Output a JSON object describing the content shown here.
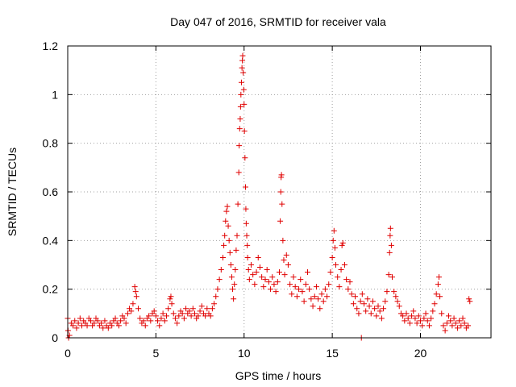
{
  "chart_data": {
    "type": "scatter",
    "title": "Day 047 of 2016, SRMTID for receiver vala",
    "xlabel": "GPS time / hours",
    "ylabel": "SRMTID / TECUs",
    "xlim": [
      0,
      24
    ],
    "ylim": [
      0,
      1.2
    ],
    "xticks": [
      0,
      5,
      10,
      15,
      20
    ],
    "xtick_labels": [
      "0",
      "5",
      "10",
      "15",
      "20"
    ],
    "yticks": [
      0,
      0.2,
      0.4,
      0.6,
      0.8,
      1.0,
      1.2
    ],
    "ytick_labels": [
      "0",
      "0.2",
      "0.4",
      "0.6",
      "0.8",
      "1",
      "1.2"
    ],
    "grid": true,
    "marker": "+",
    "marker_color": "#e00000",
    "series": [
      {
        "name": "SRMTID",
        "points": [
          [
            0.0,
            0.08
          ],
          [
            0.02,
            0.03
          ],
          [
            0.05,
            0.0
          ],
          [
            0.1,
            0.01
          ],
          [
            0.2,
            0.06
          ],
          [
            0.3,
            0.05
          ],
          [
            0.4,
            0.07
          ],
          [
            0.5,
            0.04
          ],
          [
            0.6,
            0.06
          ],
          [
            0.7,
            0.08
          ],
          [
            0.8,
            0.05
          ],
          [
            0.9,
            0.07
          ],
          [
            1.0,
            0.06
          ],
          [
            1.1,
            0.05
          ],
          [
            1.2,
            0.08
          ],
          [
            1.3,
            0.07
          ],
          [
            1.4,
            0.05
          ],
          [
            1.5,
            0.06
          ],
          [
            1.6,
            0.08
          ],
          [
            1.7,
            0.07
          ],
          [
            1.8,
            0.05
          ],
          [
            1.9,
            0.06
          ],
          [
            2.0,
            0.04
          ],
          [
            2.1,
            0.07
          ],
          [
            2.2,
            0.05
          ],
          [
            2.3,
            0.04
          ],
          [
            2.4,
            0.06
          ],
          [
            2.5,
            0.05
          ],
          [
            2.6,
            0.07
          ],
          [
            2.7,
            0.08
          ],
          [
            2.8,
            0.06
          ],
          [
            2.9,
            0.05
          ],
          [
            3.0,
            0.07
          ],
          [
            3.1,
            0.09
          ],
          [
            3.2,
            0.08
          ],
          [
            3.3,
            0.06
          ],
          [
            3.4,
            0.1
          ],
          [
            3.5,
            0.12
          ],
          [
            3.6,
            0.11
          ],
          [
            3.7,
            0.14
          ],
          [
            3.8,
            0.21
          ],
          [
            3.85,
            0.19
          ],
          [
            3.9,
            0.17
          ],
          [
            4.0,
            0.12
          ],
          [
            4.1,
            0.08
          ],
          [
            4.2,
            0.06
          ],
          [
            4.3,
            0.07
          ],
          [
            4.4,
            0.05
          ],
          [
            4.5,
            0.08
          ],
          [
            4.6,
            0.09
          ],
          [
            4.7,
            0.07
          ],
          [
            4.8,
            0.1
          ],
          [
            4.9,
            0.11
          ],
          [
            5.0,
            0.09
          ],
          [
            5.1,
            0.07
          ],
          [
            5.2,
            0.05
          ],
          [
            5.3,
            0.08
          ],
          [
            5.4,
            0.1
          ],
          [
            5.5,
            0.07
          ],
          [
            5.6,
            0.09
          ],
          [
            5.7,
            0.12
          ],
          [
            5.8,
            0.16
          ],
          [
            5.85,
            0.17
          ],
          [
            5.9,
            0.14
          ],
          [
            6.0,
            0.1
          ],
          [
            6.1,
            0.08
          ],
          [
            6.2,
            0.06
          ],
          [
            6.3,
            0.09
          ],
          [
            6.4,
            0.11
          ],
          [
            6.5,
            0.1
          ],
          [
            6.6,
            0.08
          ],
          [
            6.7,
            0.12
          ],
          [
            6.8,
            0.1
          ],
          [
            6.9,
            0.11
          ],
          [
            7.0,
            0.09
          ],
          [
            7.1,
            0.12
          ],
          [
            7.2,
            0.1
          ],
          [
            7.3,
            0.08
          ],
          [
            7.4,
            0.09
          ],
          [
            7.5,
            0.11
          ],
          [
            7.6,
            0.13
          ],
          [
            7.7,
            0.1
          ],
          [
            7.8,
            0.09
          ],
          [
            7.9,
            0.12
          ],
          [
            8.0,
            0.1
          ],
          [
            8.1,
            0.09
          ],
          [
            8.2,
            0.12
          ],
          [
            8.3,
            0.14
          ],
          [
            8.4,
            0.17
          ],
          [
            8.5,
            0.2
          ],
          [
            8.6,
            0.24
          ],
          [
            8.7,
            0.28
          ],
          [
            8.8,
            0.33
          ],
          [
            8.85,
            0.38
          ],
          [
            8.9,
            0.42
          ],
          [
            8.95,
            0.48
          ],
          [
            9.0,
            0.52
          ],
          [
            9.05,
            0.54
          ],
          [
            9.1,
            0.46
          ],
          [
            9.15,
            0.4
          ],
          [
            9.2,
            0.35
          ],
          [
            9.25,
            0.3
          ],
          [
            9.3,
            0.25
          ],
          [
            9.35,
            0.2
          ],
          [
            9.4,
            0.16
          ],
          [
            9.45,
            0.22
          ],
          [
            9.5,
            0.28
          ],
          [
            9.55,
            0.36
          ],
          [
            9.6,
            0.42
          ],
          [
            9.65,
            0.55
          ],
          [
            9.7,
            0.68
          ],
          [
            9.72,
            0.79
          ],
          [
            9.75,
            0.86
          ],
          [
            9.78,
            0.9
          ],
          [
            9.8,
            0.95
          ],
          [
            9.82,
            1.0
          ],
          [
            9.85,
            1.05
          ],
          [
            9.88,
            1.11
          ],
          [
            9.9,
            1.14
          ],
          [
            9.92,
            1.16
          ],
          [
            9.95,
            1.09
          ],
          [
            9.98,
            1.02
          ],
          [
            10.0,
            0.96
          ],
          [
            10.02,
            0.85
          ],
          [
            10.05,
            0.74
          ],
          [
            10.08,
            0.62
          ],
          [
            10.1,
            0.53
          ],
          [
            10.12,
            0.47
          ],
          [
            10.15,
            0.42
          ],
          [
            10.18,
            0.38
          ],
          [
            10.2,
            0.33
          ],
          [
            10.25,
            0.28
          ],
          [
            10.3,
            0.24
          ],
          [
            10.4,
            0.3
          ],
          [
            10.5,
            0.26
          ],
          [
            10.6,
            0.22
          ],
          [
            10.7,
            0.27
          ],
          [
            10.8,
            0.33
          ],
          [
            10.9,
            0.29
          ],
          [
            11.0,
            0.25
          ],
          [
            11.1,
            0.21
          ],
          [
            11.2,
            0.24
          ],
          [
            11.3,
            0.28
          ],
          [
            11.4,
            0.23
          ],
          [
            11.5,
            0.2
          ],
          [
            11.6,
            0.25
          ],
          [
            11.7,
            0.22
          ],
          [
            11.8,
            0.19
          ],
          [
            11.9,
            0.23
          ],
          [
            12.0,
            0.27
          ],
          [
            12.05,
            0.48
          ],
          [
            12.08,
            0.6
          ],
          [
            12.1,
            0.66
          ],
          [
            12.12,
            0.67
          ],
          [
            12.15,
            0.55
          ],
          [
            12.2,
            0.4
          ],
          [
            12.25,
            0.32
          ],
          [
            12.3,
            0.26
          ],
          [
            12.4,
            0.34
          ],
          [
            12.5,
            0.3
          ],
          [
            12.6,
            0.22
          ],
          [
            12.7,
            0.18
          ],
          [
            12.8,
            0.25
          ],
          [
            12.9,
            0.21
          ],
          [
            13.0,
            0.17
          ],
          [
            13.1,
            0.2
          ],
          [
            13.2,
            0.24
          ],
          [
            13.3,
            0.19
          ],
          [
            13.4,
            0.15
          ],
          [
            13.5,
            0.22
          ],
          [
            13.6,
            0.27
          ],
          [
            13.7,
            0.2
          ],
          [
            13.8,
            0.16
          ],
          [
            13.9,
            0.13
          ],
          [
            14.0,
            0.17
          ],
          [
            14.1,
            0.21
          ],
          [
            14.2,
            0.16
          ],
          [
            14.3,
            0.12
          ],
          [
            14.4,
            0.18
          ],
          [
            14.5,
            0.15
          ],
          [
            14.6,
            0.2
          ],
          [
            14.7,
            0.17
          ],
          [
            14.8,
            0.22
          ],
          [
            14.9,
            0.27
          ],
          [
            15.0,
            0.33
          ],
          [
            15.05,
            0.4
          ],
          [
            15.1,
            0.44
          ],
          [
            15.15,
            0.37
          ],
          [
            15.2,
            0.3
          ],
          [
            15.3,
            0.25
          ],
          [
            15.4,
            0.21
          ],
          [
            15.5,
            0.28
          ],
          [
            15.55,
            0.38
          ],
          [
            15.6,
            0.39
          ],
          [
            15.7,
            0.3
          ],
          [
            15.8,
            0.24
          ],
          [
            15.9,
            0.2
          ],
          [
            16.0,
            0.23
          ],
          [
            16.1,
            0.18
          ],
          [
            16.2,
            0.14
          ],
          [
            16.3,
            0.17
          ],
          [
            16.4,
            0.12
          ],
          [
            16.5,
            0.1
          ],
          [
            16.6,
            0.15
          ],
          [
            16.65,
            0.0
          ],
          [
            16.7,
            0.18
          ],
          [
            16.8,
            0.14
          ],
          [
            16.9,
            0.11
          ],
          [
            17.0,
            0.16
          ],
          [
            17.1,
            0.13
          ],
          [
            17.2,
            0.1
          ],
          [
            17.3,
            0.15
          ],
          [
            17.4,
            0.12
          ],
          [
            17.5,
            0.09
          ],
          [
            17.6,
            0.13
          ],
          [
            17.7,
            0.11
          ],
          [
            17.8,
            0.08
          ],
          [
            17.9,
            0.12
          ],
          [
            18.0,
            0.15
          ],
          [
            18.1,
            0.19
          ],
          [
            18.2,
            0.26
          ],
          [
            18.25,
            0.35
          ],
          [
            18.28,
            0.42
          ],
          [
            18.3,
            0.45
          ],
          [
            18.35,
            0.38
          ],
          [
            18.4,
            0.25
          ],
          [
            18.5,
            0.19
          ],
          [
            18.6,
            0.17
          ],
          [
            18.7,
            0.15
          ],
          [
            18.8,
            0.13
          ],
          [
            18.9,
            0.1
          ],
          [
            19.0,
            0.09
          ],
          [
            19.1,
            0.07
          ],
          [
            19.2,
            0.1
          ],
          [
            19.3,
            0.08
          ],
          [
            19.4,
            0.06
          ],
          [
            19.5,
            0.09
          ],
          [
            19.6,
            0.11
          ],
          [
            19.7,
            0.08
          ],
          [
            19.8,
            0.06
          ],
          [
            19.9,
            0.09
          ],
          [
            20.0,
            0.07
          ],
          [
            20.1,
            0.05
          ],
          [
            20.2,
            0.08
          ],
          [
            20.3,
            0.1
          ],
          [
            20.4,
            0.07
          ],
          [
            20.5,
            0.05
          ],
          [
            20.6,
            0.08
          ],
          [
            20.7,
            0.11
          ],
          [
            20.8,
            0.14
          ],
          [
            20.9,
            0.18
          ],
          [
            21.0,
            0.22
          ],
          [
            21.05,
            0.25
          ],
          [
            21.1,
            0.17
          ],
          [
            21.2,
            0.1
          ],
          [
            21.3,
            0.05
          ],
          [
            21.4,
            0.03
          ],
          [
            21.5,
            0.06
          ],
          [
            21.6,
            0.09
          ],
          [
            21.7,
            0.07
          ],
          [
            21.8,
            0.05
          ],
          [
            21.9,
            0.08
          ],
          [
            22.0,
            0.06
          ],
          [
            22.1,
            0.04
          ],
          [
            22.2,
            0.07
          ],
          [
            22.3,
            0.05
          ],
          [
            22.4,
            0.08
          ],
          [
            22.5,
            0.06
          ],
          [
            22.6,
            0.04
          ],
          [
            22.7,
            0.05
          ],
          [
            22.75,
            0.16
          ],
          [
            22.8,
            0.15
          ]
        ]
      }
    ]
  }
}
